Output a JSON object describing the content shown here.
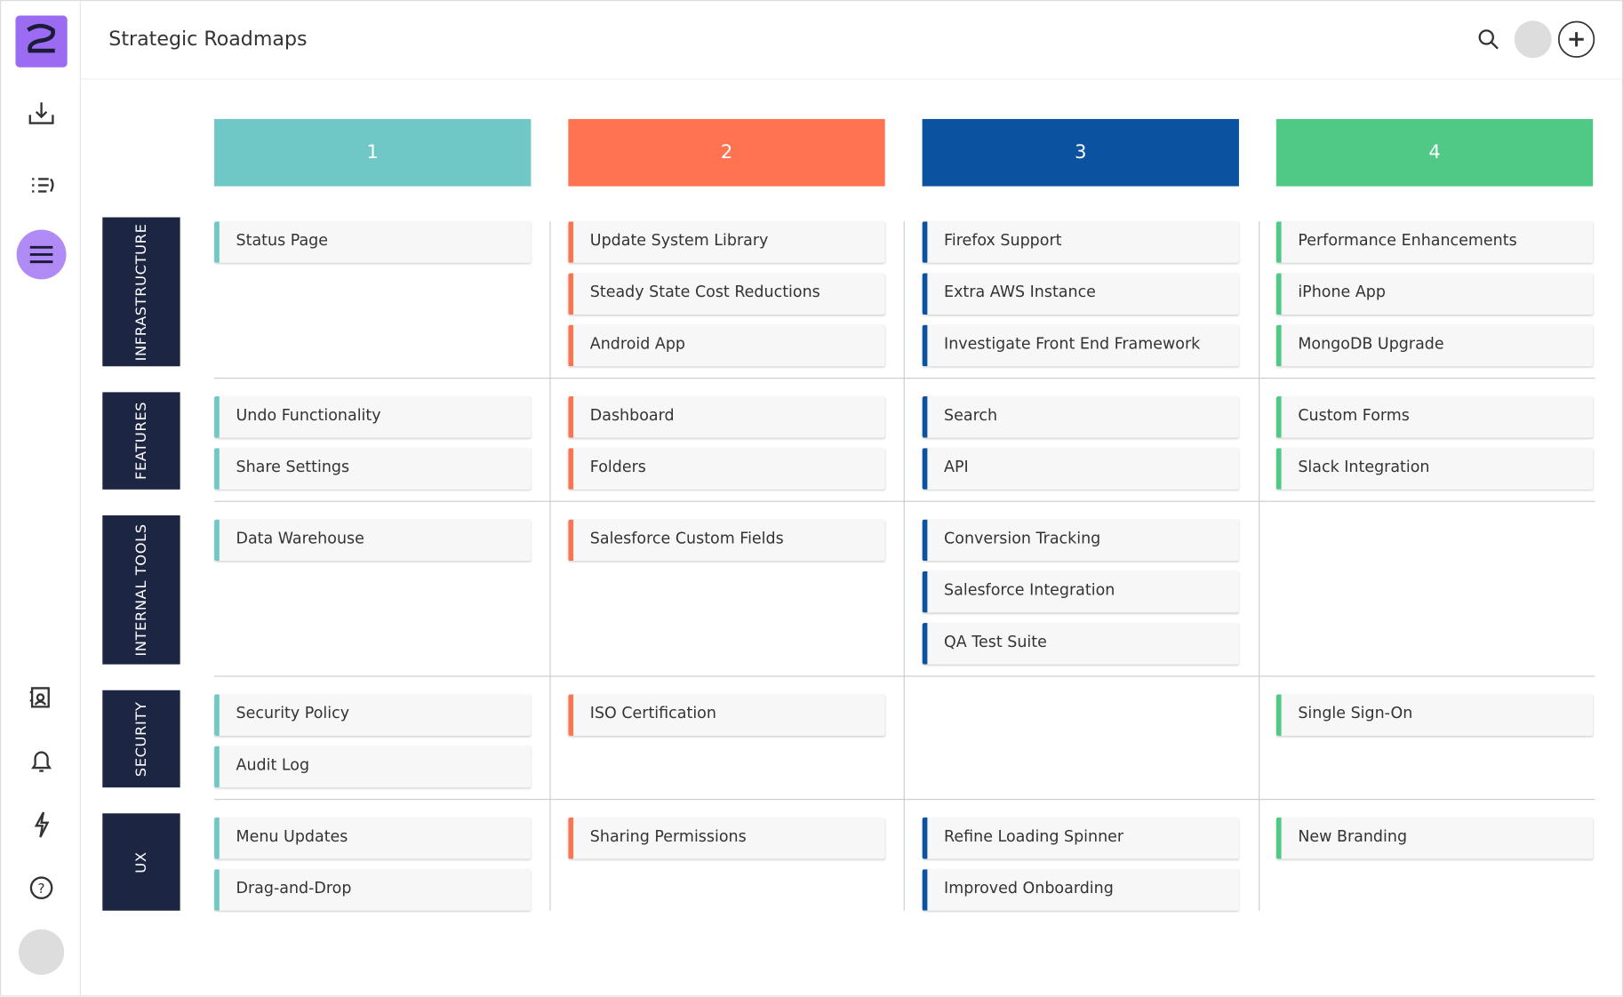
{
  "header": {
    "title": "Strategic Roadmaps"
  },
  "columns": [
    {
      "label": "1",
      "color": "#6fc8c6"
    },
    {
      "label": "2",
      "color": "#ff7350"
    },
    {
      "label": "3",
      "color": "#0b52a0"
    },
    {
      "label": "4",
      "color": "#50c987"
    }
  ],
  "lanes": [
    {
      "label": "INFRASTRUCTURE",
      "cells": [
        [
          "Status Page"
        ],
        [
          "Update System Library",
          "Steady State Cost Reductions",
          "Android App"
        ],
        [
          "Firefox Support",
          "Extra AWS Instance",
          "Investigate Front End Framework"
        ],
        [
          "Performance Enhancements",
          "iPhone App",
          "MongoDB Upgrade"
        ]
      ]
    },
    {
      "label": "FEATURES",
      "cells": [
        [
          "Undo Functionality",
          "Share Settings"
        ],
        [
          "Dashboard",
          "Folders"
        ],
        [
          "Search",
          "API"
        ],
        [
          "Custom Forms",
          "Slack Integration"
        ]
      ]
    },
    {
      "label": "INTERNAL TOOLS",
      "cells": [
        [
          "Data Warehouse"
        ],
        [
          "Salesforce Custom Fields"
        ],
        [
          "Conversion Tracking",
          "Salesforce Integration",
          "QA Test Suite"
        ],
        []
      ]
    },
    {
      "label": "SECURITY",
      "cells": [
        [
          "Security Policy",
          "Audit Log"
        ],
        [
          "ISO Certification"
        ],
        [],
        [
          "Single Sign-On"
        ]
      ]
    },
    {
      "label": "UX",
      "cells": [
        [
          "Menu Updates",
          "Drag-and-Drop"
        ],
        [
          "Sharing Permissions"
        ],
        [
          "Refine Loading Spinner",
          "Improved Onboarding"
        ],
        [
          "New Branding"
        ]
      ]
    }
  ]
}
